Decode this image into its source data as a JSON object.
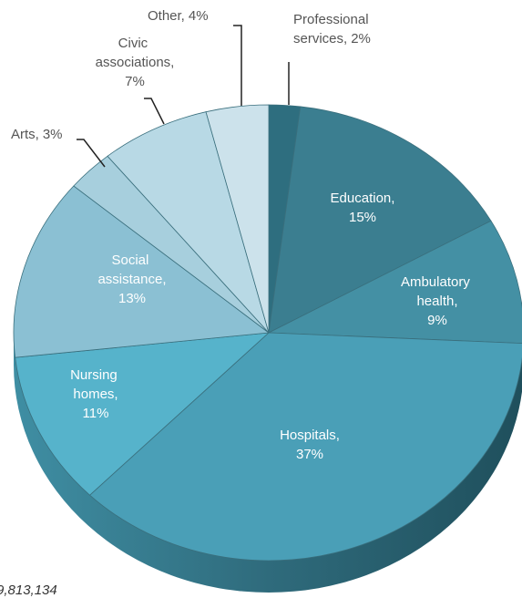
{
  "chart_data": {
    "type": "pie",
    "categories": [
      "Professional services,",
      "Education,",
      "Ambulatory health,",
      "Hospitals,",
      "Nursing homes,",
      "Social assistance,",
      "Arts,",
      "Civic associations,",
      "Other,"
    ],
    "values": [
      2,
      15,
      9,
      37,
      11,
      13,
      3,
      7,
      4
    ],
    "value_labels": [
      "2%",
      "15%",
      "9%",
      "37%",
      "11%",
      "13%",
      "3%",
      "7%",
      "4%"
    ],
    "colors": [
      "#2e6e7f",
      "#3b7e90",
      "#4490a4",
      "#4a9fb7",
      "#56b3cb",
      "#8bc0d3",
      "#a7cfdd",
      "#b8d9e5",
      "#cce2eb"
    ],
    "annotation": "9,813,134"
  }
}
